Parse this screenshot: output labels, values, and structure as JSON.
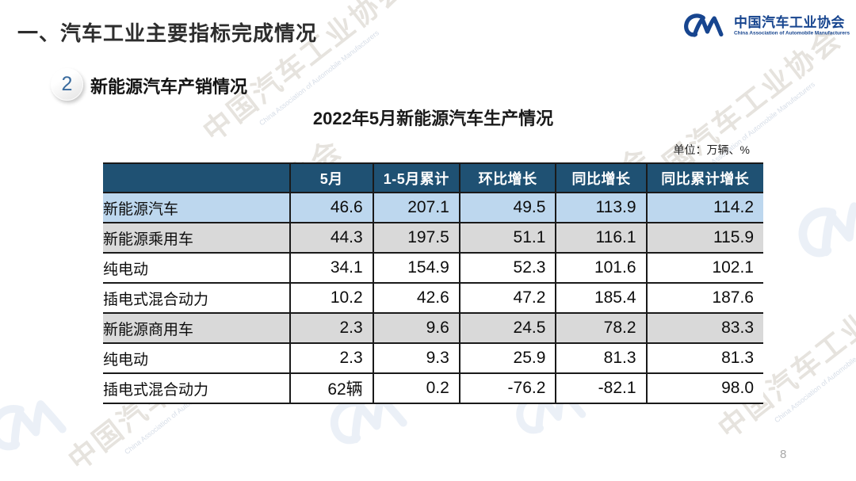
{
  "slide": {
    "main_title": "一、汽车工业主要指标完成情况",
    "section_number": "2",
    "section_title": "新能源汽车产销情况",
    "table_title": "2022年5月新能源汽车生产情况",
    "unit_note": "单位：万辆、%",
    "page_number": "8"
  },
  "logo": {
    "monogram": "CM",
    "name_cn": "中国汽车工业协会",
    "name_en": "China Association of Automobile Manufacturers"
  },
  "watermark": {
    "text_cn": "中国汽车工业协会",
    "text_en": "China Association of Automobile Manufacturers"
  },
  "colors": {
    "header_bg": "#1F5173",
    "header_text": "#FFFFFF",
    "row_highlight_blue": "#BDD7EE",
    "row_highlight_gray": "#D9D9D9",
    "border_color": "#1A1A1A",
    "logo_blue": "#17458F"
  },
  "chart_data": {
    "type": "table",
    "title": "2022年5月新能源汽车生产情况",
    "unit": "万辆、%",
    "columns": [
      "",
      "5月",
      "1-5月累计",
      "环比增长",
      "同比增长",
      "同比累计增长"
    ],
    "rows": [
      {
        "label": "新能源汽车",
        "indent": 0,
        "style": "blue",
        "values": [
          "46.6",
          "207.1",
          "49.5",
          "113.9",
          "114.2"
        ]
      },
      {
        "label": "新能源乘用车",
        "indent": 1,
        "style": "gray",
        "values": [
          "44.3",
          "197.5",
          "51.1",
          "116.1",
          "115.9"
        ]
      },
      {
        "label": "纯电动",
        "indent": 2,
        "style": "white",
        "values": [
          "34.1",
          "154.9",
          "52.3",
          "101.6",
          "102.1"
        ]
      },
      {
        "label": "插电式混合动力",
        "indent": 2,
        "style": "white",
        "values": [
          "10.2",
          "42.6",
          "47.2",
          "185.4",
          "187.6"
        ]
      },
      {
        "label": "新能源商用车",
        "indent": 1,
        "style": "gray",
        "values": [
          "2.3",
          "9.6",
          "24.5",
          "78.2",
          "83.3"
        ]
      },
      {
        "label": "纯电动",
        "indent": 2,
        "style": "white",
        "values": [
          "2.3",
          "9.3",
          "25.9",
          "81.3",
          "81.3"
        ]
      },
      {
        "label": "插电式混合动力",
        "indent": 2,
        "style": "white",
        "values": [
          "62辆",
          "0.2",
          "-76.2",
          "-82.1",
          "98.0"
        ]
      }
    ]
  }
}
